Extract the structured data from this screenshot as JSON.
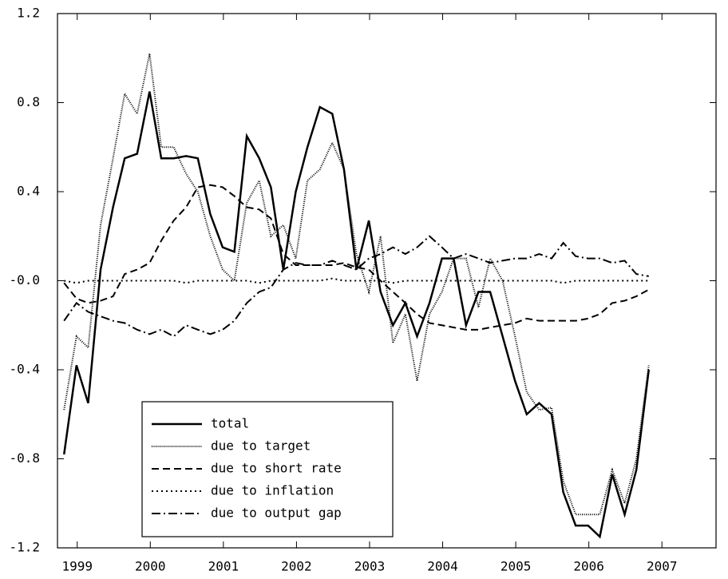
{
  "chart_data": {
    "type": "line",
    "x": [
      1998.82,
      1998.99,
      1999.15,
      1999.32,
      1999.49,
      1999.65,
      1999.82,
      1999.99,
      2000.15,
      2000.32,
      2000.49,
      2000.65,
      2000.82,
      2000.99,
      2001.15,
      2001.32,
      2001.49,
      2001.65,
      2001.82,
      2001.99,
      2002.15,
      2002.32,
      2002.49,
      2002.65,
      2002.82,
      2002.99,
      2003.15,
      2003.32,
      2003.49,
      2003.65,
      2003.82,
      2003.99,
      2004.15,
      2004.32,
      2004.49,
      2004.65,
      2004.82,
      2004.99,
      2005.15,
      2005.32,
      2005.49,
      2005.65,
      2005.82,
      2005.99,
      2006.15,
      2006.32,
      2006.49,
      2006.65,
      2006.82
    ],
    "series": [
      {
        "name": "total",
        "color": "#000000",
        "dash": "none",
        "width": 2.5,
        "values": [
          -0.78,
          -0.38,
          -0.55,
          0.05,
          0.33,
          0.55,
          0.57,
          0.85,
          0.55,
          0.55,
          0.56,
          0.55,
          0.3,
          0.15,
          0.13,
          0.65,
          0.55,
          0.42,
          0.05,
          0.4,
          0.6,
          0.78,
          0.75,
          0.5,
          0.05,
          0.27,
          -0.05,
          -0.2,
          -0.1,
          -0.25,
          -0.1,
          0.1,
          0.1,
          -0.2,
          -0.05,
          -0.05,
          -0.25,
          -0.45,
          -0.6,
          -0.55,
          -0.6,
          -0.95,
          -1.1,
          -1.1,
          -1.15,
          -0.87,
          -1.05,
          -0.85,
          -0.4
        ]
      },
      {
        "name": "due to target",
        "color": "#000000",
        "dash": "1,1.5",
        "width": 2,
        "values": [
          -0.58,
          -0.25,
          -0.3,
          0.25,
          0.55,
          0.84,
          0.75,
          1.02,
          0.6,
          0.6,
          0.48,
          0.4,
          0.2,
          0.05,
          0.0,
          0.35,
          0.45,
          0.2,
          0.25,
          0.1,
          0.45,
          0.5,
          0.62,
          0.5,
          0.12,
          -0.05,
          0.2,
          -0.28,
          -0.15,
          -0.45,
          -0.15,
          -0.05,
          0.1,
          0.1,
          -0.12,
          0.1,
          0.0,
          -0.25,
          -0.5,
          -0.58,
          -0.57,
          -0.9,
          -1.05,
          -1.05,
          -1.05,
          -0.85,
          -1.0,
          -0.8,
          -0.38
        ]
      },
      {
        "name": "due to short rate",
        "color": "#000000",
        "dash": "9,5",
        "width": 2,
        "values": [
          -0.01,
          -0.08,
          -0.1,
          -0.09,
          -0.07,
          0.03,
          0.05,
          0.08,
          0.18,
          0.27,
          0.33,
          0.42,
          0.43,
          0.42,
          0.38,
          0.33,
          0.32,
          0.28,
          0.12,
          0.07,
          0.07,
          0.07,
          0.07,
          0.08,
          0.06,
          0.05,
          0.0,
          -0.05,
          -0.1,
          -0.15,
          -0.19,
          -0.2,
          -0.21,
          -0.22,
          -0.22,
          -0.21,
          -0.2,
          -0.19,
          -0.17,
          -0.18,
          -0.18,
          -0.18,
          -0.18,
          -0.17,
          -0.15,
          -0.1,
          -0.09,
          -0.07,
          -0.04
        ]
      },
      {
        "name": "due to inflation",
        "color": "#000000",
        "dash": "2,4",
        "width": 2,
        "values": [
          0,
          -0.01,
          0,
          0,
          0,
          0,
          0,
          0,
          0,
          0,
          -0.01,
          0,
          0,
          0,
          0,
          0,
          -0.01,
          0,
          0,
          0,
          0,
          0,
          0.01,
          0,
          0,
          0,
          0,
          -0.01,
          0,
          0,
          0,
          0,
          0,
          0,
          0,
          0,
          0,
          0,
          0,
          0,
          0,
          -0.01,
          0,
          0,
          0,
          0,
          0,
          0,
          0
        ]
      },
      {
        "name": "due to output gap",
        "color": "#000000",
        "dash": "11,4,2,4",
        "width": 2,
        "values": [
          -0.18,
          -0.1,
          -0.14,
          -0.16,
          -0.18,
          -0.19,
          -0.22,
          -0.24,
          -0.22,
          -0.25,
          -0.2,
          -0.22,
          -0.24,
          -0.22,
          -0.18,
          -0.1,
          -0.05,
          -0.03,
          0.05,
          0.08,
          0.07,
          0.07,
          0.09,
          0.07,
          0.05,
          0.1,
          0.12,
          0.15,
          0.12,
          0.15,
          0.2,
          0.15,
          0.1,
          0.12,
          0.1,
          0.08,
          0.09,
          0.1,
          0.1,
          0.12,
          0.1,
          0.17,
          0.11,
          0.1,
          0.1,
          0.08,
          0.09,
          0.03,
          0.02
        ]
      }
    ],
    "xlim": [
      1998.73,
      2007.74
    ],
    "xticks": [
      1999,
      2000,
      2001,
      2002,
      2003,
      2004,
      2005,
      2006,
      2007
    ],
    "ylim": [
      -1.2,
      1.2
    ],
    "yticks": [
      -1.2,
      -0.8,
      -0.4,
      {
        "value": 0,
        "label": "-0.0"
      },
      0.4,
      0.8,
      1.2
    ],
    "legend": "lower left"
  }
}
